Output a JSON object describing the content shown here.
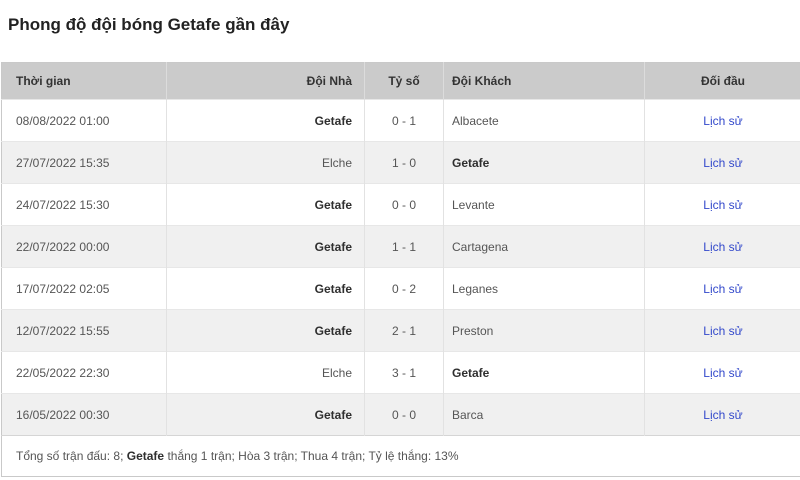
{
  "page": {
    "title": "Phong độ đội bóng Getafe gần đây"
  },
  "table": {
    "highlight_team": "Getafe",
    "history_label": "Lịch sử",
    "columns": {
      "time": "Thời gian",
      "home": "Đội Nhà",
      "score": "Tỷ số",
      "away": "Đội Khách",
      "h2h": "Đối đầu"
    },
    "rows": [
      {
        "time": "08/08/2022 01:00",
        "home": "Getafe",
        "score": "0 - 1",
        "away": "Albacete"
      },
      {
        "time": "27/07/2022 15:35",
        "home": "Elche",
        "score": "1 - 0",
        "away": "Getafe"
      },
      {
        "time": "24/07/2022 15:30",
        "home": "Getafe",
        "score": "0 - 0",
        "away": "Levante"
      },
      {
        "time": "22/07/2022 00:00",
        "home": "Getafe",
        "score": "1 - 1",
        "away": "Cartagena"
      },
      {
        "time": "17/07/2022 02:05",
        "home": "Getafe",
        "score": "0 - 2",
        "away": "Leganes"
      },
      {
        "time": "12/07/2022 15:55",
        "home": "Getafe",
        "score": "2 - 1",
        "away": "Preston"
      },
      {
        "time": "22/05/2022 22:30",
        "home": "Elche",
        "score": "3 - 1",
        "away": "Getafe"
      },
      {
        "time": "16/05/2022 00:30",
        "home": "Getafe",
        "score": "0 - 0",
        "away": "Barca"
      }
    ],
    "summary": {
      "part1": "Tổng số trận đấu: 8; ",
      "team": "Getafe",
      "part2": " thắng 1 trận; Hòa 3 trận; Thua 4 trận; Tỷ lệ thắng: 13%"
    }
  },
  "colors": {
    "link_blue": "#3349cb",
    "header_gray": "#cbcbcb",
    "row_alt_gray": "#f0f0f0"
  }
}
